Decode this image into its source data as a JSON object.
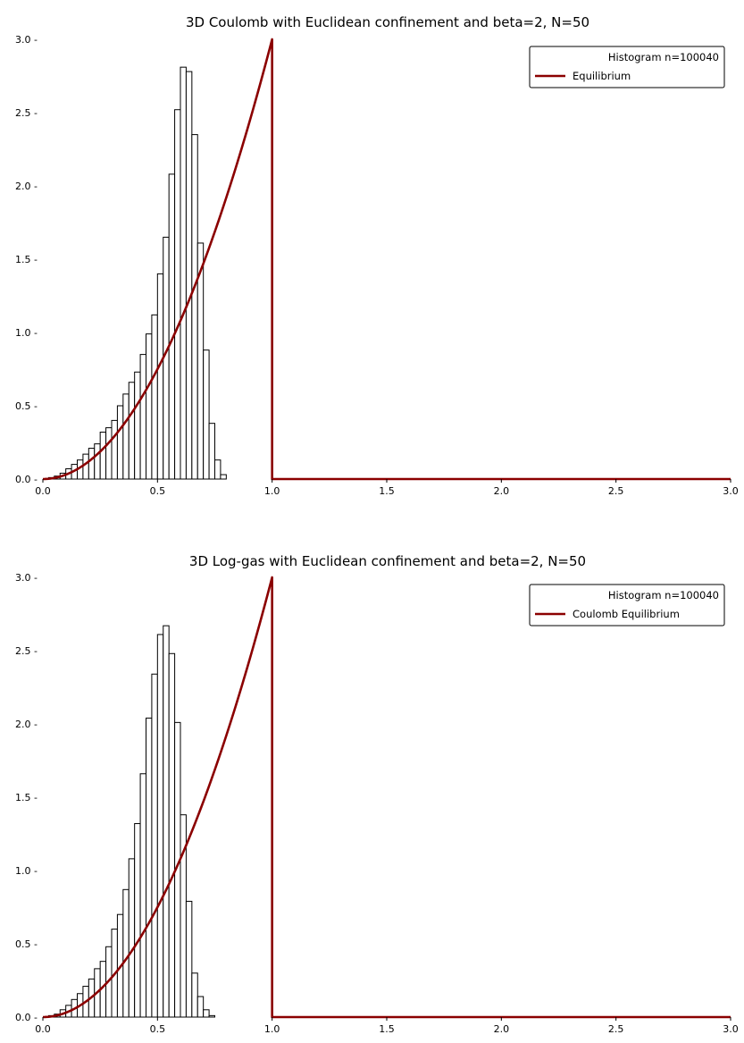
{
  "colors": {
    "equilibrium": "#8b0000",
    "bar_edge": "#000000",
    "bar_fill": "#ffffff"
  },
  "chart_data": [
    {
      "type": "bar",
      "title": "3D Coulomb with Euclidean confinement and beta=2, N=50",
      "xlim": [
        0,
        3
      ],
      "ylim": [
        0,
        3
      ],
      "x_ticks": [
        0.0,
        0.5,
        1.0,
        1.5,
        2.0,
        2.5,
        3.0
      ],
      "x_tick_labels": [
        "0.0",
        "0.5",
        "1.0",
        "1.5",
        "2.0",
        "2.5",
        "3.0"
      ],
      "y_ticks": [
        0.0,
        0.5,
        1.0,
        1.5,
        2.0,
        2.5,
        3.0
      ],
      "y_tick_labels": [
        "0.0 -",
        "0.5 -",
        "1.0 -",
        "1.5 -",
        "2.0 -",
        "2.5 -",
        "3.0 -"
      ],
      "grid": false,
      "legend_placement": "top-right",
      "legend": [
        "Histogram n=100040",
        "Equilibrium"
      ],
      "histogram": {
        "bin_width": 0.025,
        "bin_start": 0.0,
        "values": [
          0.0,
          0.01,
          0.02,
          0.04,
          0.07,
          0.1,
          0.13,
          0.17,
          0.21,
          0.24,
          0.32,
          0.35,
          0.4,
          0.5,
          0.58,
          0.66,
          0.73,
          0.85,
          0.99,
          1.12,
          1.4,
          1.65,
          2.08,
          2.52,
          2.81,
          2.78,
          2.35,
          1.61,
          0.88,
          0.38,
          0.13,
          0.03,
          0.0
        ]
      },
      "equilibrium_curve": {
        "formula": "3x^2 on [0,1], 0 on (1,3]",
        "peak": [
          1.0,
          3.0
        ]
      }
    },
    {
      "type": "bar",
      "title": "3D Log-gas with Euclidean confinement and beta=2, N=50",
      "xlim": [
        0,
        3
      ],
      "ylim": [
        0,
        3
      ],
      "x_ticks": [
        0.0,
        0.5,
        1.0,
        1.5,
        2.0,
        2.5,
        3.0
      ],
      "x_tick_labels": [
        "0.0",
        "0.5",
        "1.0",
        "1.5",
        "2.0",
        "2.5",
        "3.0"
      ],
      "y_ticks": [
        0.0,
        0.5,
        1.0,
        1.5,
        2.0,
        2.5,
        3.0
      ],
      "y_tick_labels": [
        "0.0 -",
        "0.5 -",
        "1.0 -",
        "1.5 -",
        "2.0 -",
        "2.5 -",
        "3.0 -"
      ],
      "grid": false,
      "legend_placement": "top-right",
      "legend": [
        "Histogram n=100040",
        "Coulomb Equilibrium"
      ],
      "histogram": {
        "bin_width": 0.025,
        "bin_start": 0.0,
        "values": [
          0.0,
          0.01,
          0.02,
          0.05,
          0.08,
          0.12,
          0.16,
          0.21,
          0.26,
          0.33,
          0.38,
          0.48,
          0.6,
          0.7,
          0.87,
          1.08,
          1.32,
          1.66,
          2.04,
          2.34,
          2.61,
          2.67,
          2.48,
          2.01,
          1.38,
          0.79,
          0.3,
          0.14,
          0.05,
          0.01,
          0.0
        ]
      },
      "equilibrium_curve": {
        "formula": "3x^2 on [0,1], 0 on (1,3]",
        "peak": [
          1.0,
          3.0
        ]
      }
    }
  ]
}
